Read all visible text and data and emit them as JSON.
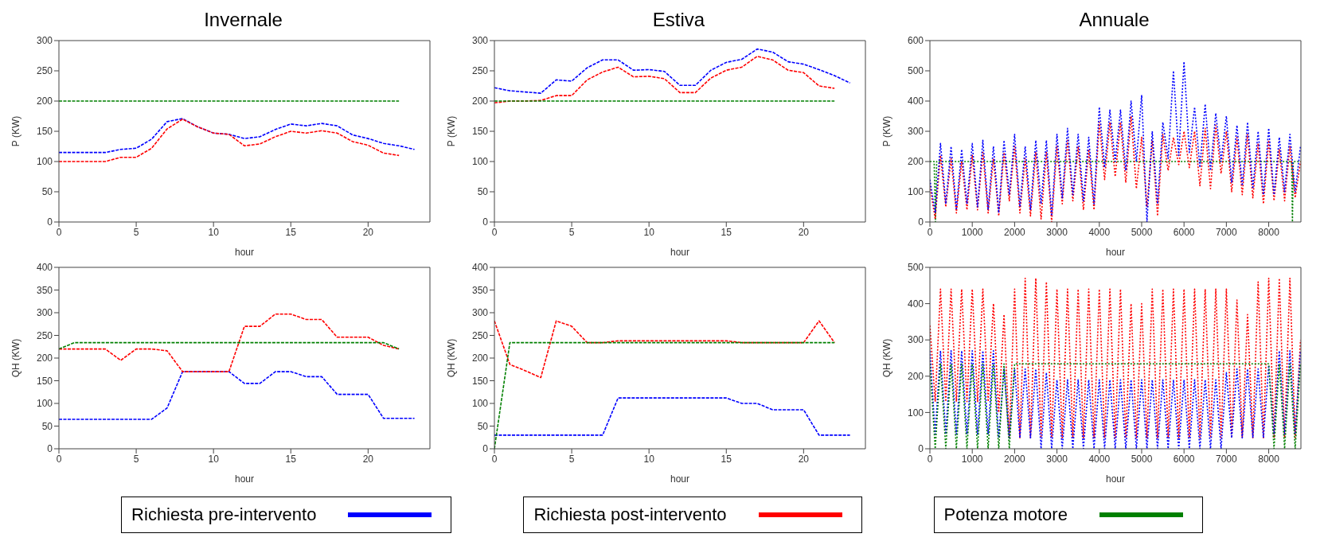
{
  "chart_data": [
    {
      "type": "line",
      "title": "Invernale",
      "xlabel": "hour",
      "ylabel": "P (KW)",
      "xlim": [
        0,
        24
      ],
      "xticks": [
        0,
        5,
        10,
        15,
        20
      ],
      "ylim": [
        0,
        300
      ],
      "yticks": [
        0,
        50,
        100,
        150,
        200,
        250,
        300
      ],
      "line_style": "dashed",
      "legend": "bottom",
      "series": [
        {
          "name": "Richiesta pre-intervento",
          "color": "#0000ff",
          "x": [
            0,
            1,
            2,
            3,
            4,
            5,
            6,
            7,
            8,
            9,
            10,
            11,
            12,
            13,
            14,
            15,
            16,
            17,
            18,
            19,
            20,
            21,
            22,
            23
          ],
          "values": [
            115,
            115,
            115,
            115,
            120,
            122,
            137,
            166,
            171,
            157,
            147,
            145,
            138,
            141,
            153,
            162,
            159,
            163,
            159,
            144,
            138,
            130,
            126,
            120
          ]
        },
        {
          "name": "Richiesta post-intervento",
          "color": "#ff0000",
          "x": [
            0,
            1,
            2,
            3,
            4,
            5,
            6,
            7,
            8,
            9,
            10,
            11,
            12,
            13,
            14,
            15,
            16,
            17,
            18,
            19,
            20,
            21,
            22
          ],
          "values": [
            100,
            100,
            100,
            100,
            107,
            107,
            122,
            154,
            170,
            157,
            147,
            145,
            126,
            129,
            141,
            150,
            147,
            151,
            147,
            133,
            127,
            114,
            110
          ]
        },
        {
          "name": "Potenza motore",
          "color": "#008000",
          "x": [
            0,
            1,
            2,
            3,
            4,
            5,
            6,
            7,
            8,
            9,
            10,
            11,
            12,
            13,
            14,
            15,
            16,
            17,
            18,
            19,
            20,
            21,
            22
          ],
          "values": [
            200,
            200,
            200,
            200,
            200,
            200,
            200,
            200,
            200,
            200,
            200,
            200,
            200,
            200,
            200,
            200,
            200,
            200,
            200,
            200,
            200,
            200,
            200
          ]
        }
      ]
    },
    {
      "type": "line",
      "title": "Estiva",
      "xlabel": "hour",
      "ylabel": "P (KW)",
      "xlim": [
        0,
        24
      ],
      "xticks": [
        0,
        5,
        10,
        15,
        20
      ],
      "ylim": [
        0,
        300
      ],
      "yticks": [
        0,
        50,
        100,
        150,
        200,
        250,
        300
      ],
      "line_style": "dashed",
      "series": [
        {
          "color": "#0000ff",
          "x": [
            0,
            1,
            2,
            3,
            4,
            5,
            6,
            7,
            8,
            9,
            10,
            11,
            12,
            13,
            14,
            15,
            16,
            17,
            18,
            19,
            20,
            21,
            22,
            23
          ],
          "values": [
            222,
            217,
            215,
            213,
            235,
            233,
            255,
            268,
            268,
            251,
            252,
            249,
            226,
            226,
            251,
            264,
            269,
            286,
            281,
            265,
            261,
            252,
            242,
            230
          ]
        },
        {
          "color": "#ff0000",
          "x": [
            0,
            1,
            2,
            3,
            4,
            5,
            6,
            7,
            8,
            9,
            10,
            11,
            12,
            13,
            14,
            15,
            16,
            17,
            18,
            19,
            20,
            21,
            22
          ],
          "values": [
            197,
            200,
            200,
            201,
            209,
            209,
            235,
            248,
            256,
            240,
            241,
            237,
            214,
            214,
            238,
            251,
            256,
            274,
            268,
            251,
            247,
            225,
            221
          ]
        },
        {
          "color": "#008000",
          "x": [
            0,
            1,
            2,
            3,
            4,
            5,
            6,
            7,
            8,
            9,
            10,
            11,
            12,
            13,
            14,
            15,
            16,
            17,
            18,
            19,
            20,
            21,
            22
          ],
          "values": [
            200,
            200,
            200,
            200,
            200,
            200,
            200,
            200,
            200,
            200,
            200,
            200,
            200,
            200,
            200,
            200,
            200,
            200,
            200,
            200,
            200,
            200,
            200
          ]
        }
      ]
    },
    {
      "type": "line",
      "title": "Annuale",
      "xlabel": "hour",
      "ylabel": "P (KW)",
      "xlim": [
        0,
        8760
      ],
      "xticks": [
        0,
        1000,
        2000,
        3000,
        4000,
        5000,
        6000,
        7000,
        8000
      ],
      "ylim": [
        0,
        600
      ],
      "yticks": [
        0,
        100,
        200,
        300,
        400,
        500,
        600
      ],
      "line_style": "dotted",
      "series": [
        {
          "color": "#008000",
          "x": [
            0,
            100,
            130,
            160,
            8540,
            8560,
            8580,
            8760
          ],
          "values": [
            200,
            200,
            0,
            200,
            200,
            0,
            200,
            200
          ]
        },
        {
          "color": "#ff0000",
          "x": [
            0,
            125,
            250,
            375,
            500,
            625,
            750,
            875,
            1000,
            1125,
            1250,
            1375,
            1500,
            1625,
            1750,
            1875,
            2000,
            2125,
            2250,
            2375,
            2500,
            2625,
            2750,
            2875,
            3000,
            3125,
            3250,
            3375,
            3500,
            3625,
            3750,
            3875,
            4000,
            4125,
            4250,
            4375,
            4500,
            4625,
            4750,
            4875,
            5000,
            5125,
            5250,
            5375,
            5500,
            5625,
            5750,
            5875,
            6000,
            6125,
            6250,
            6375,
            6500,
            6625,
            6750,
            6875,
            7000,
            7125,
            7250,
            7375,
            7500,
            7625,
            7750,
            7875,
            8000,
            8125,
            8250,
            8375,
            8500,
            8625,
            8750
          ],
          "values": [
            120,
            10,
            220,
            50,
            210,
            30,
            200,
            40,
            220,
            40,
            230,
            30,
            210,
            20,
            230,
            70,
            250,
            30,
            210,
            20,
            230,
            10,
            230,
            0,
            250,
            60,
            270,
            70,
            250,
            40,
            240,
            40,
            330,
            140,
            330,
            150,
            330,
            130,
            350,
            110,
            280,
            50,
            270,
            20,
            290,
            170,
            280,
            190,
            300,
            180,
            300,
            120,
            310,
            110,
            320,
            160,
            300,
            100,
            280,
            90,
            290,
            80,
            260,
            60,
            270,
            70,
            240,
            70,
            250,
            80,
            200
          ]
        },
        {
          "color": "#0000ff",
          "x": [
            0,
            125,
            250,
            375,
            500,
            625,
            750,
            875,
            1000,
            1125,
            1250,
            1375,
            1500,
            1625,
            1750,
            1875,
            2000,
            2125,
            2250,
            2375,
            2500,
            2625,
            2750,
            2875,
            3000,
            3125,
            3250,
            3375,
            3500,
            3625,
            3750,
            3875,
            4000,
            4125,
            4250,
            4375,
            4500,
            4625,
            4750,
            4875,
            5000,
            5125,
            5250,
            5375,
            5500,
            5625,
            5750,
            5875,
            6000,
            6125,
            6250,
            6375,
            6500,
            6625,
            6750,
            6875,
            7000,
            7125,
            7250,
            7375,
            7500,
            7625,
            7750,
            7875,
            8000,
            8125,
            8250,
            8375,
            8500,
            8625,
            8750
          ],
          "values": [
            140,
            30,
            260,
            60,
            250,
            40,
            240,
            60,
            260,
            50,
            270,
            40,
            250,
            30,
            270,
            90,
            290,
            50,
            250,
            40,
            270,
            60,
            270,
            20,
            290,
            80,
            310,
            90,
            290,
            70,
            280,
            60,
            380,
            180,
            370,
            200,
            370,
            170,
            400,
            200,
            420,
            0,
            300,
            60,
            330,
            210,
            500,
            220,
            530,
            230,
            380,
            180,
            390,
            170,
            360,
            200,
            350,
            130,
            320,
            120,
            330,
            110,
            300,
            90,
            310,
            90,
            280,
            100,
            290,
            100,
            250
          ]
        }
      ]
    },
    {
      "type": "line",
      "xlabel": "hour",
      "ylabel": "QH (KW)",
      "xlim": [
        0,
        24
      ],
      "xticks": [
        0,
        5,
        10,
        15,
        20
      ],
      "ylim": [
        0,
        400
      ],
      "yticks": [
        0,
        50,
        100,
        150,
        200,
        250,
        300,
        350,
        400
      ],
      "line_style": "dashed",
      "series": [
        {
          "color": "#0000ff",
          "x": [
            0,
            1,
            2,
            3,
            4,
            5,
            6,
            7,
            8,
            9,
            10,
            11,
            12,
            13,
            14,
            15,
            16,
            17,
            18,
            19,
            20,
            21,
            22,
            23
          ],
          "values": [
            65,
            65,
            65,
            65,
            65,
            65,
            65,
            90,
            170,
            170,
            170,
            170,
            144,
            144,
            170,
            170,
            159,
            159,
            120,
            120,
            120,
            67,
            67,
            67
          ]
        },
        {
          "color": "#ff0000",
          "x": [
            0,
            1,
            2,
            3,
            4,
            5,
            6,
            7,
            8,
            9,
            10,
            11,
            12,
            13,
            14,
            15,
            16,
            17,
            18,
            19,
            20,
            21,
            22
          ],
          "values": [
            220,
            220,
            220,
            220,
            195,
            220,
            220,
            216,
            170,
            170,
            170,
            170,
            270,
            270,
            297,
            297,
            285,
            285,
            246,
            246,
            246,
            228,
            220
          ]
        },
        {
          "color": "#008000",
          "x": [
            0,
            1,
            2,
            3,
            4,
            5,
            6,
            7,
            8,
            9,
            10,
            11,
            12,
            13,
            14,
            15,
            16,
            17,
            18,
            19,
            20,
            21,
            22
          ],
          "values": [
            220,
            234,
            234,
            234,
            234,
            234,
            234,
            234,
            234,
            234,
            234,
            234,
            234,
            234,
            234,
            234,
            234,
            234,
            234,
            234,
            234,
            234,
            220
          ]
        }
      ]
    },
    {
      "type": "line",
      "xlabel": "hour",
      "ylabel": "QH (KW)",
      "xlim": [
        0,
        24
      ],
      "xticks": [
        0,
        5,
        10,
        15,
        20
      ],
      "ylim": [
        0,
        400
      ],
      "yticks": [
        0,
        50,
        100,
        150,
        200,
        250,
        300,
        350,
        400
      ],
      "line_style": "dashed",
      "series": [
        {
          "color": "#0000ff",
          "x": [
            0,
            1,
            2,
            3,
            4,
            5,
            6,
            7,
            8,
            9,
            10,
            11,
            12,
            13,
            14,
            15,
            16,
            17,
            18,
            19,
            20,
            21,
            22,
            23
          ],
          "values": [
            30,
            30,
            30,
            30,
            30,
            30,
            30,
            30,
            112,
            112,
            112,
            112,
            112,
            112,
            112,
            112,
            100,
            100,
            86,
            86,
            86,
            30,
            30,
            30
          ]
        },
        {
          "color": "#ff0000",
          "x": [
            0,
            1,
            2,
            3,
            4,
            5,
            6,
            7,
            8,
            9,
            10,
            11,
            12,
            13,
            14,
            15,
            16,
            17,
            18,
            19,
            20,
            21,
            22
          ],
          "values": [
            282,
            186,
            172,
            157,
            282,
            270,
            234,
            234,
            238,
            238,
            238,
            238,
            238,
            238,
            238,
            238,
            234,
            234,
            234,
            234,
            234,
            282,
            234
          ]
        },
        {
          "color": "#008000",
          "x": [
            0,
            1,
            2,
            3,
            4,
            5,
            6,
            7,
            8,
            9,
            10,
            11,
            12,
            13,
            14,
            15,
            16,
            17,
            18,
            19,
            20,
            21,
            22
          ],
          "values": [
            0,
            234,
            234,
            234,
            234,
            234,
            234,
            234,
            234,
            234,
            234,
            234,
            234,
            234,
            234,
            234,
            234,
            234,
            234,
            234,
            234,
            234,
            234
          ]
        }
      ]
    },
    {
      "type": "line",
      "xlabel": "hour",
      "ylabel": "QH (KW)",
      "xlim": [
        0,
        8760
      ],
      "xticks": [
        0,
        1000,
        2000,
        3000,
        4000,
        5000,
        6000,
        7000,
        8000
      ],
      "ylim": [
        0,
        500
      ],
      "yticks": [
        0,
        100,
        200,
        300,
        400,
        500
      ],
      "line_style": "dotted",
      "series": [
        {
          "color": "#ff0000",
          "x": [
            0,
            125,
            250,
            375,
            500,
            625,
            750,
            875,
            1000,
            1125,
            1250,
            1375,
            1500,
            1625,
            1750,
            1875,
            2000,
            2125,
            2250,
            2375,
            2500,
            2625,
            2750,
            2875,
            3000,
            3125,
            3250,
            3375,
            3500,
            3625,
            3750,
            3875,
            4000,
            4125,
            4250,
            4375,
            4500,
            4625,
            4750,
            4875,
            5000,
            5125,
            5250,
            5375,
            5500,
            5625,
            5750,
            5875,
            6000,
            6125,
            6250,
            6375,
            6500,
            6625,
            6750,
            6875,
            7000,
            7125,
            7250,
            7375,
            7500,
            7625,
            7750,
            7875,
            8000,
            8125,
            8250,
            8375,
            8500,
            8625,
            8750
          ],
          "values": [
            340,
            130,
            440,
            130,
            440,
            130,
            440,
            130,
            440,
            130,
            440,
            130,
            400,
            100,
            370,
            30,
            440,
            30,
            470,
            30,
            470,
            30,
            460,
            30,
            440,
            30,
            440,
            30,
            440,
            30,
            440,
            30,
            440,
            30,
            440,
            30,
            440,
            30,
            400,
            30,
            400,
            30,
            440,
            30,
            440,
            30,
            440,
            30,
            440,
            30,
            440,
            30,
            440,
            30,
            440,
            30,
            440,
            30,
            410,
            30,
            370,
            30,
            460,
            30,
            470,
            30,
            470,
            30,
            470,
            30,
            300
          ]
        },
        {
          "color": "#0000ff",
          "x": [
            0,
            125,
            250,
            375,
            500,
            625,
            750,
            875,
            1000,
            1125,
            1250,
            1375,
            1500,
            1625,
            1750,
            1875,
            2000,
            2125,
            2250,
            2375,
            2500,
            2625,
            2750,
            2875,
            3000,
            3125,
            3250,
            3375,
            3500,
            3625,
            3750,
            3875,
            4000,
            4125,
            4250,
            4375,
            4500,
            4625,
            4750,
            4875,
            5000,
            5125,
            5250,
            5375,
            5500,
            5625,
            5750,
            5875,
            6000,
            6125,
            6250,
            6375,
            6500,
            6625,
            6750,
            6875,
            7000,
            7125,
            7250,
            7375,
            7500,
            7625,
            7750,
            7875,
            8000,
            8125,
            8250,
            8375,
            8500,
            8625,
            8750
          ],
          "values": [
            270,
            40,
            270,
            40,
            270,
            40,
            270,
            40,
            270,
            40,
            270,
            40,
            270,
            30,
            220,
            30,
            220,
            30,
            220,
            30,
            220,
            0,
            210,
            0,
            190,
            0,
            190,
            0,
            190,
            0,
            190,
            0,
            190,
            0,
            190,
            0,
            190,
            0,
            190,
            0,
            190,
            0,
            190,
            0,
            190,
            0,
            190,
            0,
            190,
            0,
            190,
            0,
            190,
            0,
            190,
            0,
            210,
            30,
            220,
            30,
            220,
            30,
            220,
            30,
            230,
            40,
            270,
            40,
            270,
            40,
            270
          ]
        },
        {
          "color": "#008000",
          "x": [
            0,
            125,
            250,
            375,
            500,
            625,
            750,
            875,
            1000,
            1125,
            1250,
            1375,
            1500,
            1625,
            1750,
            1875,
            2000,
            2125,
            2250,
            2375,
            2500,
            2625,
            2750,
            2875,
            3000,
            3125,
            3250,
            3375,
            3500,
            3625,
            3750,
            3875,
            4000,
            4125,
            4250,
            4375,
            4500,
            4625,
            4750,
            4875,
            5000,
            5125,
            5250,
            5375,
            5500,
            5625,
            5750,
            5875,
            6000,
            6125,
            6250,
            6375,
            6500,
            6625,
            6750,
            6875,
            7000,
            7125,
            7250,
            7375,
            7500,
            7625,
            7750,
            7875,
            8000,
            8125,
            8250,
            8375,
            8500,
            8625,
            8750
          ],
          "values": [
            234,
            0,
            234,
            0,
            234,
            0,
            234,
            0,
            234,
            0,
            234,
            0,
            234,
            0,
            234,
            0,
            234,
            234,
            234,
            234,
            234,
            234,
            234,
            234,
            234,
            234,
            234,
            234,
            234,
            234,
            234,
            234,
            234,
            234,
            234,
            234,
            234,
            234,
            234,
            234,
            234,
            234,
            234,
            234,
            234,
            234,
            234,
            234,
            234,
            234,
            234,
            234,
            234,
            234,
            234,
            234,
            234,
            234,
            234,
            234,
            234,
            234,
            234,
            234,
            234,
            0,
            234,
            0,
            234,
            0,
            234
          ]
        }
      ]
    }
  ]
}
